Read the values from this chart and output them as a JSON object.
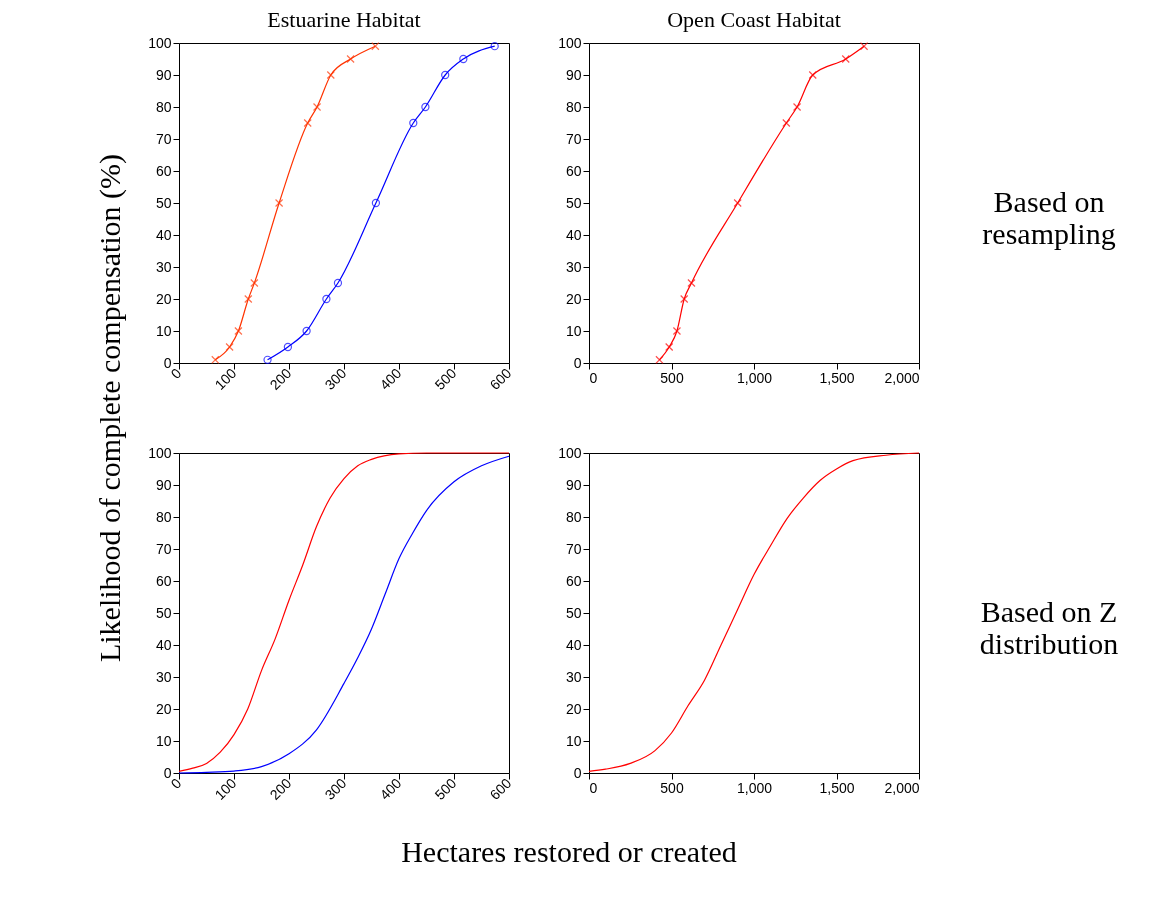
{
  "chart_data": [
    {
      "type": "line",
      "title": "Estuarine Habitat",
      "ylabel": "Likelihood of complete compensation (%)",
      "xlim": [
        0,
        600
      ],
      "xticks": [
        0,
        100,
        200,
        300,
        400,
        500,
        600
      ],
      "ylim": [
        0,
        100
      ],
      "yticks": [
        0,
        10,
        20,
        30,
        40,
        50,
        60,
        70,
        80,
        90,
        100
      ],
      "series": [
        {
          "color": "#ff3300",
          "marker": "cross",
          "x": [
            66,
            92,
            108,
            126,
            137,
            182,
            234,
            251,
            276,
            312,
            357
          ],
          "values": [
            1,
            5,
            10,
            20,
            25,
            50,
            75,
            80,
            90,
            95,
            99
          ]
        },
        {
          "color": "#0000ff",
          "marker": "circle",
          "x": [
            161,
            198,
            232,
            268,
            289,
            358,
            426,
            448,
            484,
            517,
            574
          ],
          "values": [
            1,
            5,
            10,
            20,
            25,
            50,
            75,
            80,
            90,
            95,
            99
          ]
        }
      ]
    },
    {
      "type": "line",
      "title": "Open Coast Habitat",
      "annotations": [
        "Based on resampling"
      ],
      "xlim": [
        0,
        2000
      ],
      "xticks": [
        0,
        500,
        {
          "value": 1000,
          "label": "1,000"
        },
        {
          "value": 1500,
          "label": "1,500"
        },
        {
          "value": 2000,
          "label": "2,000"
        }
      ],
      "ylim": [
        0,
        100
      ],
      "yticks": [
        0,
        10,
        20,
        30,
        40,
        50,
        60,
        70,
        80,
        90,
        100
      ],
      "series": [
        {
          "color": "#ff0000",
          "marker": "cross",
          "x": [
            427,
            486,
            533,
            577,
            621,
            901,
            1196,
            1261,
            1356,
            1556,
            1667
          ],
          "values": [
            1,
            5,
            10,
            20,
            25,
            50,
            75,
            80,
            90,
            95,
            99
          ]
        }
      ]
    },
    {
      "type": "line",
      "xlabel": "Hectares restored or created",
      "xlim": [
        0,
        600
      ],
      "xticks": [
        0,
        100,
        200,
        300,
        400,
        500,
        600
      ],
      "ylim": [
        0,
        100
      ],
      "yticks": [
        0,
        10,
        20,
        30,
        40,
        50,
        60,
        70,
        80,
        90,
        100
      ],
      "series": [
        {
          "color": "#ff0000",
          "x": [
            0,
            25,
            50,
            75,
            100,
            125,
            150,
            175,
            200,
            225,
            250,
            275,
            300,
            325,
            350,
            400,
            450,
            600
          ],
          "values": [
            0.5,
            1.5,
            3,
            6.5,
            12,
            20,
            32,
            42,
            54,
            65,
            77,
            86,
            92,
            96,
            98,
            99.7,
            100,
            100
          ]
        },
        {
          "color": "#0000ff",
          "x": [
            0,
            50,
            100,
            150,
            200,
            250,
            300,
            325,
            350,
            375,
            400,
            425,
            450,
            500,
            550,
            600
          ],
          "values": [
            0,
            0.2,
            0.6,
            2,
            6,
            13.5,
            28,
            36,
            45,
            56,
            67,
            75,
            82,
            91,
            96,
            99
          ]
        }
      ]
    },
    {
      "type": "line",
      "annotations": [
        "Based on Z distribution"
      ],
      "xlim": [
        0,
        2000
      ],
      "xticks": [
        0,
        500,
        {
          "value": 1000,
          "label": "1,000"
        },
        {
          "value": 1500,
          "label": "1,500"
        },
        {
          "value": 2000,
          "label": "2,000"
        }
      ],
      "ylim": [
        0,
        100
      ],
      "yticks": [
        0,
        10,
        20,
        30,
        40,
        50,
        60,
        70,
        80,
        90,
        100
      ],
      "series": [
        {
          "color": "#ff0000",
          "x": [
            0,
            100,
            250,
            400,
            500,
            600,
            700,
            800,
            900,
            1000,
            1100,
            1200,
            1300,
            1400,
            1500,
            1600,
            1800,
            2000
          ],
          "values": [
            0.5,
            1.2,
            3,
            7,
            12.5,
            21,
            29,
            40,
            51,
            62,
            71,
            79.5,
            86,
            91.4,
            95,
            97.6,
            99.3,
            100
          ]
        }
      ]
    }
  ]
}
